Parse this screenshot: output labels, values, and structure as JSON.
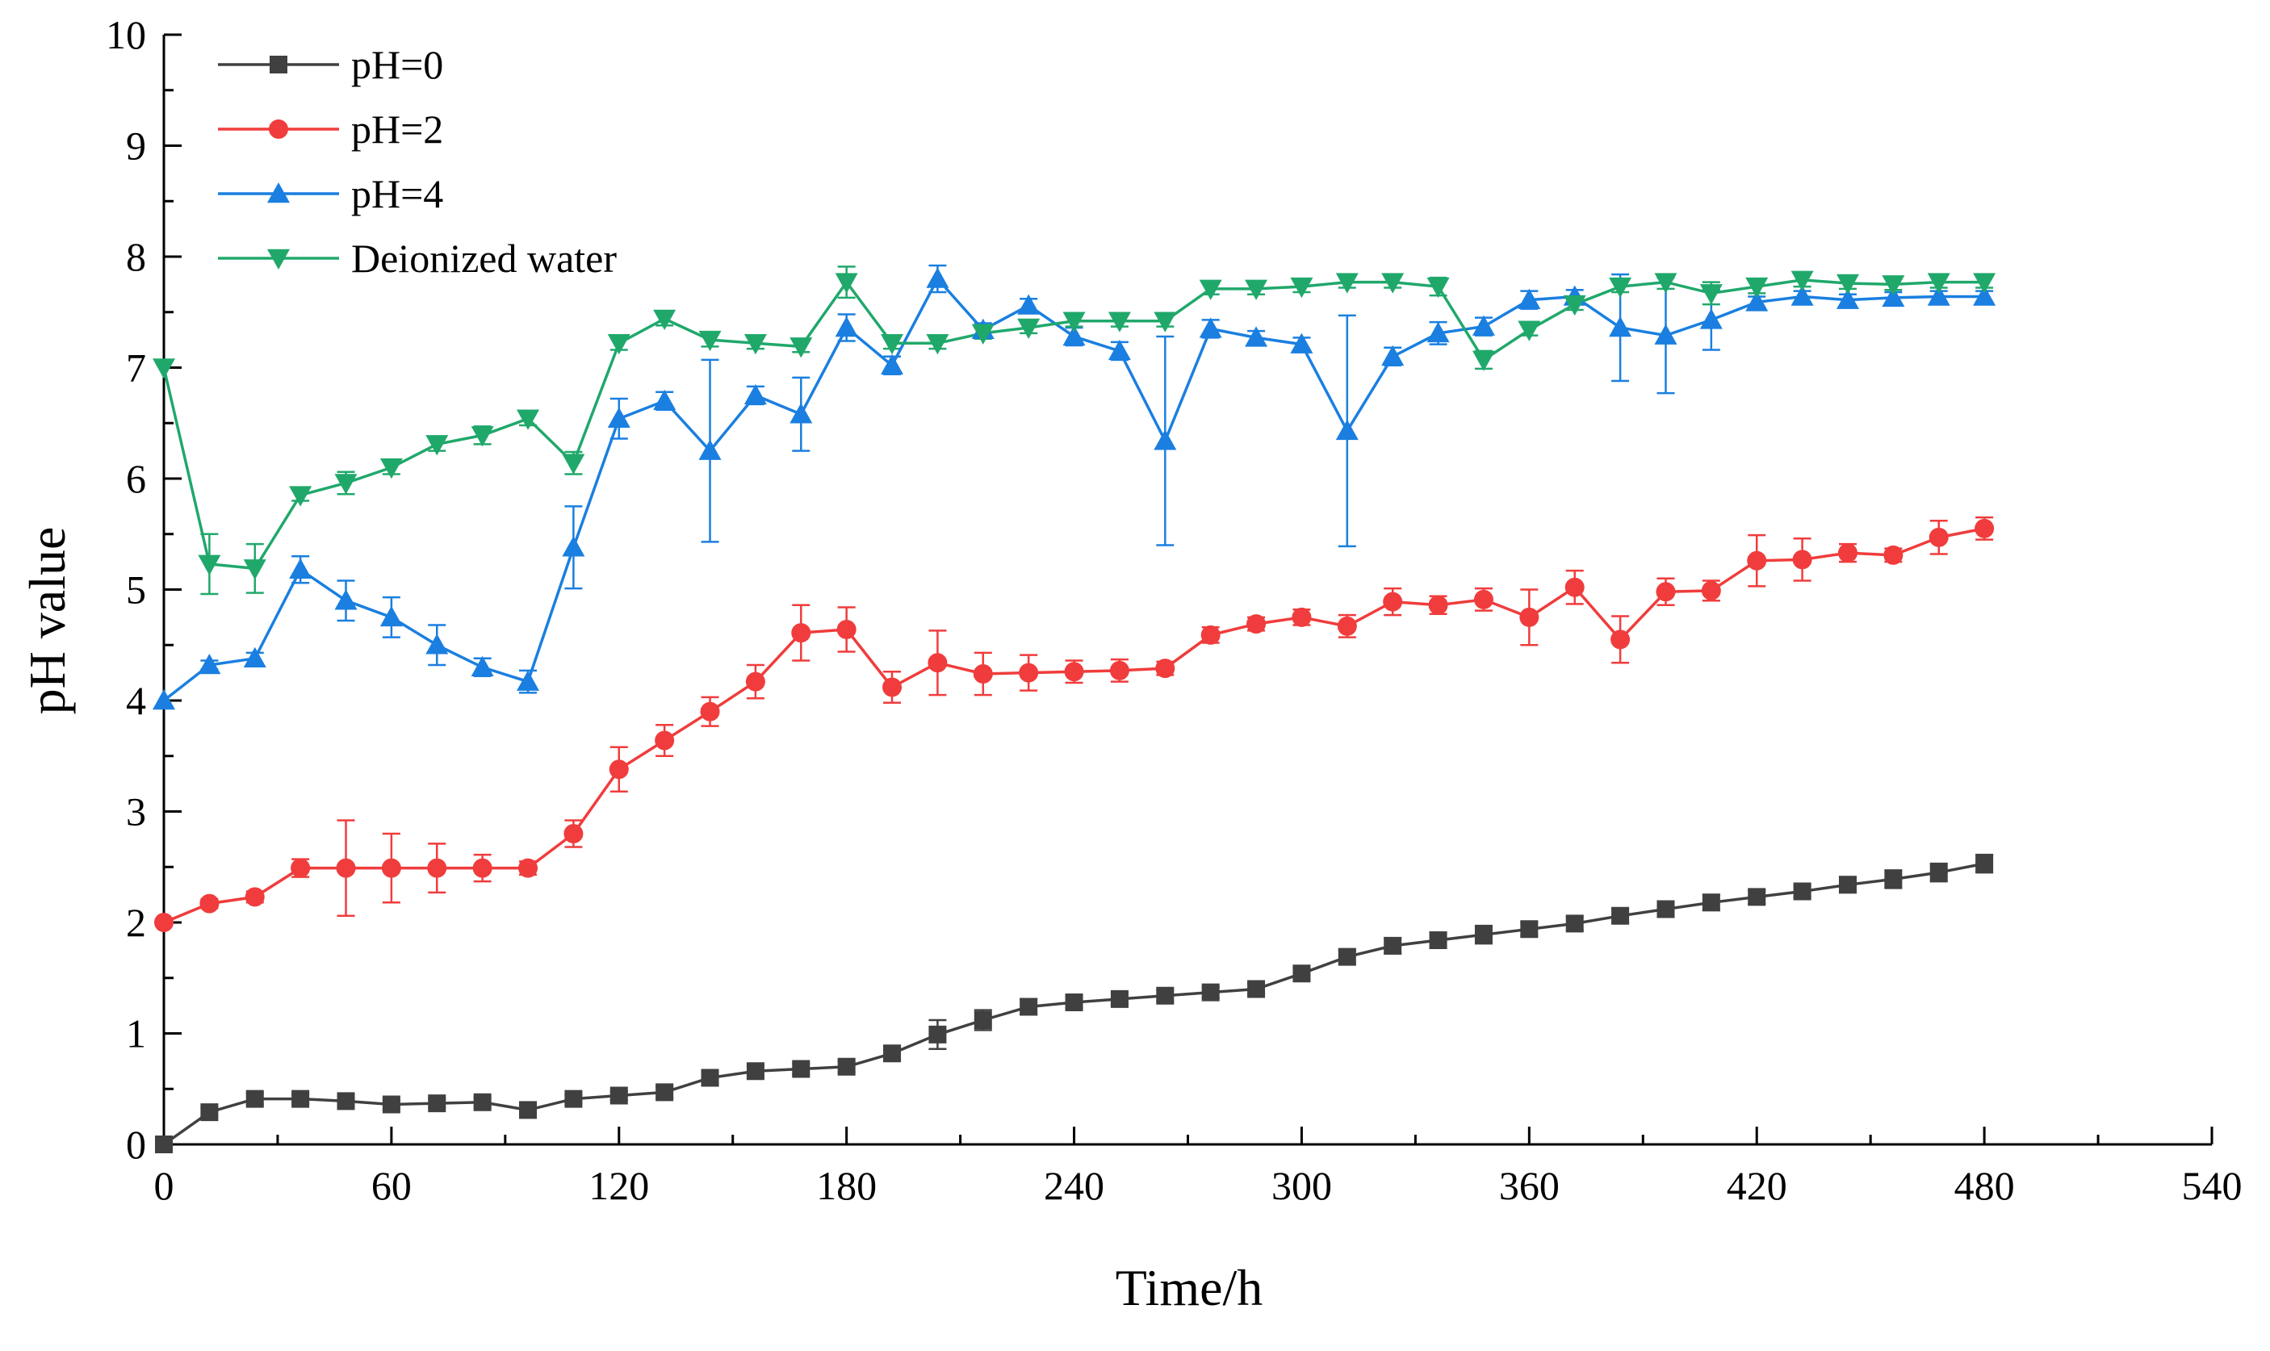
{
  "chart_data": {
    "type": "line",
    "title": "",
    "xlabel": "Time/h",
    "ylabel": "pH value",
    "xlim": [
      0,
      540
    ],
    "ylim": [
      0,
      10
    ],
    "xticks": [
      0,
      60,
      120,
      180,
      240,
      300,
      360,
      420,
      480,
      540
    ],
    "yticks": [
      0,
      1,
      2,
      3,
      4,
      5,
      6,
      7,
      8,
      9,
      10
    ],
    "grid": false,
    "legend_position": "top-left",
    "x": [
      0,
      12,
      24,
      36,
      48,
      60,
      72,
      84,
      96,
      108,
      120,
      132,
      144,
      156,
      168,
      180,
      192,
      204,
      216,
      228,
      240,
      252,
      264,
      276,
      288,
      300,
      312,
      324,
      336,
      348,
      360,
      372,
      384,
      396,
      408,
      420,
      432,
      444,
      456,
      468,
      480
    ],
    "series": [
      {
        "name": "pH=0",
        "color": "#404040",
        "marker": "square",
        "values": [
          0,
          0.29,
          0.41,
          0.41,
          0.39,
          0.36,
          0.37,
          0.38,
          0.31,
          0.41,
          0.44,
          0.47,
          0.6,
          0.66,
          0.68,
          0.7,
          0.82,
          0.99,
          1.12,
          1.24,
          1.28,
          1.31,
          1.34,
          1.37,
          1.4,
          1.54,
          1.69,
          1.79,
          1.84,
          1.89,
          1.94,
          1.99,
          2.06,
          2.12,
          2.18,
          2.23,
          2.28,
          2.34,
          2.39,
          2.45,
          2.53
        ],
        "errors": [
          0,
          0.04,
          0.05,
          0.04,
          0.04,
          0.04,
          0.04,
          0.04,
          0.04,
          0.04,
          0.04,
          0.05,
          0.07,
          0.05,
          0.05,
          0.05,
          0.06,
          0.13,
          0.09,
          0.07,
          0.05,
          0.05,
          0.05,
          0.05,
          0.05,
          0.05,
          0.06,
          0.07,
          0.07,
          0.08,
          0.06,
          0.06,
          0.06,
          0.07,
          0.07,
          0.06,
          0.05,
          0.07,
          0.08,
          0.08,
          0.08
        ]
      },
      {
        "name": "pH=2",
        "color": "#f03c3c",
        "marker": "circle",
        "values": [
          2.0,
          2.17,
          2.23,
          2.49,
          2.49,
          2.49,
          2.49,
          2.49,
          2.49,
          2.8,
          3.38,
          3.64,
          3.9,
          4.17,
          4.61,
          4.64,
          4.12,
          4.34,
          4.24,
          4.25,
          4.26,
          4.27,
          4.29,
          4.59,
          4.69,
          4.75,
          4.67,
          4.89,
          4.86,
          4.91,
          4.75,
          5.02,
          4.55,
          4.98,
          4.99,
          5.26,
          5.27,
          5.33,
          5.31,
          5.47,
          5.55
        ],
        "errors": [
          0,
          0.04,
          0.05,
          0.08,
          0.43,
          0.31,
          0.22,
          0.12,
          0.06,
          0.12,
          0.2,
          0.14,
          0.13,
          0.15,
          0.25,
          0.2,
          0.14,
          0.29,
          0.19,
          0.16,
          0.1,
          0.1,
          0.06,
          0.07,
          0.06,
          0.07,
          0.1,
          0.12,
          0.08,
          0.1,
          0.25,
          0.15,
          0.21,
          0.12,
          0.09,
          0.23,
          0.19,
          0.08,
          0.06,
          0.15,
          0.1
        ]
      },
      {
        "name": "pH=4",
        "color": "#1a7fe0",
        "marker": "triangle-up",
        "values": [
          4.0,
          4.32,
          4.38,
          5.18,
          4.9,
          4.75,
          4.5,
          4.3,
          4.17,
          5.38,
          6.54,
          6.7,
          6.25,
          6.75,
          6.58,
          7.36,
          7.02,
          7.8,
          7.34,
          7.56,
          7.28,
          7.15,
          6.34,
          7.35,
          7.27,
          7.21,
          6.43,
          7.1,
          7.31,
          7.37,
          7.61,
          7.64,
          7.36,
          7.29,
          7.43,
          7.59,
          7.64,
          7.61,
          7.63,
          7.64,
          7.64
        ],
        "errors": [
          0,
          0.04,
          0.05,
          0.12,
          0.18,
          0.18,
          0.18,
          0.08,
          0.1,
          0.37,
          0.18,
          0.08,
          0.82,
          0.08,
          0.33,
          0.12,
          0.08,
          0.12,
          0.06,
          0.06,
          0.08,
          0.08,
          0.94,
          0.08,
          0.06,
          0.06,
          1.04,
          0.08,
          0.1,
          0.08,
          0.08,
          0.06,
          0.48,
          0.52,
          0.27,
          0.05,
          0.05,
          0.05,
          0.05,
          0.05,
          0.05
        ]
      },
      {
        "name": "Deionized water",
        "color": "#20a86b",
        "marker": "triangle-down",
        "values": [
          7.0,
          5.23,
          5.19,
          5.85,
          5.96,
          6.1,
          6.31,
          6.39,
          6.54,
          6.14,
          7.22,
          7.44,
          7.25,
          7.22,
          7.19,
          7.77,
          7.22,
          7.22,
          7.31,
          7.36,
          7.42,
          7.42,
          7.42,
          7.71,
          7.71,
          7.73,
          7.77,
          7.77,
          7.73,
          7.07,
          7.34,
          7.57,
          7.73,
          7.77,
          7.67,
          7.73,
          7.79,
          7.76,
          7.75,
          7.77,
          7.77
        ],
        "errors": [
          0,
          0.27,
          0.22,
          0.05,
          0.1,
          0.06,
          0.06,
          0.08,
          0.06,
          0.1,
          0.06,
          0.06,
          0.06,
          0.05,
          0.05,
          0.14,
          0.05,
          0.05,
          0.05,
          0.05,
          0.05,
          0.05,
          0.05,
          0.05,
          0.05,
          0.05,
          0.05,
          0.05,
          0.08,
          0.08,
          0.05,
          0.05,
          0.05,
          0.06,
          0.1,
          0.06,
          0.06,
          0.05,
          0.05,
          0.05,
          0.05
        ]
      }
    ]
  }
}
